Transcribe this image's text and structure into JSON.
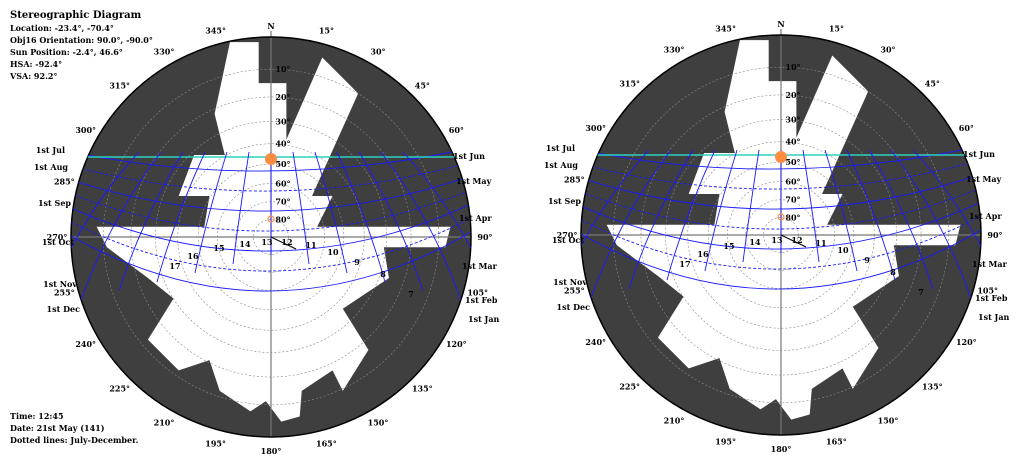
{
  "info": {
    "title": "Stereographic Diagram",
    "location": "Location: -23.4°, -70.4°",
    "orientation": "Obj16 Orientation: 90.0°, -90.0°",
    "sun_position": "Sun Position: -2.4°, 46.6°",
    "hsa": "HSA: -92.4°",
    "vsa": "VSA: 92.2°"
  },
  "footer": {
    "time": "Time: 12:45",
    "date": "Date: 21st May (141)",
    "dotted": "Dotted lines: July-December."
  },
  "north_label": "N",
  "azimuth_labels": [
    "15°",
    "30°",
    "45°",
    "60°",
    "90°",
    "105°",
    "120°",
    "135°",
    "150°",
    "165°",
    "180°",
    "195°",
    "210°",
    "225°",
    "240°",
    "255°",
    "270°",
    "285°",
    "300°",
    "315°",
    "330°",
    "345°"
  ],
  "altitude_labels": [
    "10°",
    "20°",
    "30°",
    "40°",
    "50°",
    "60°",
    "70°",
    "80°"
  ],
  "hour_labels": [
    "7",
    "8",
    "9",
    "10",
    "11",
    "12",
    "13",
    "14",
    "15",
    "16",
    "17"
  ],
  "month_labels_right": [
    "1st Jun",
    "1st May",
    "1st Apr",
    "1st Mar",
    "1st Feb",
    "1st Jan"
  ],
  "month_labels_left": [
    "1st Jul",
    "1st Aug",
    "1st Sep",
    "1st Oct",
    "1st Nov",
    "1st Dec"
  ],
  "colors": {
    "obstruction": "#3f3f3f",
    "sun_path": "#1a1aff",
    "sun_marker": "#ff8c40",
    "date_line": "#2fd0c0"
  }
}
